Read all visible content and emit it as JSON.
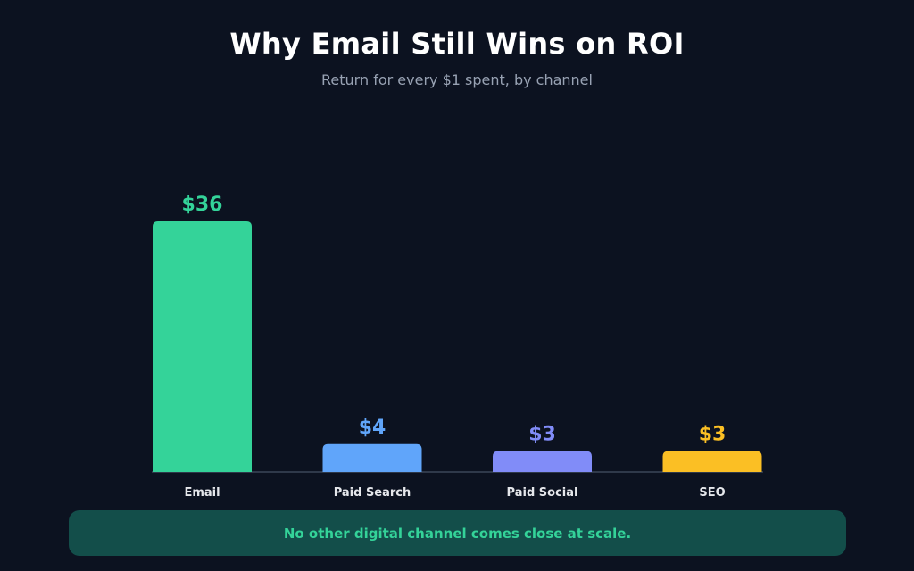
{
  "chart_data": {
    "type": "bar",
    "title": "Why Email Still Wins on ROI",
    "subtitle": "Return for every $1 spent, by channel",
    "categories": [
      "Email",
      "Paid Search",
      "Paid Social",
      "SEO"
    ],
    "values": [
      36,
      4,
      3,
      3
    ],
    "value_labels": [
      "$36",
      "$4",
      "$3",
      "$3"
    ],
    "colors": [
      "#34d399",
      "#60a5fa",
      "#818cf8",
      "#fbbf24"
    ],
    "ylim": [
      0,
      36
    ],
    "grid": false,
    "legend": "none",
    "callout": "No other digital channel comes close at scale."
  }
}
